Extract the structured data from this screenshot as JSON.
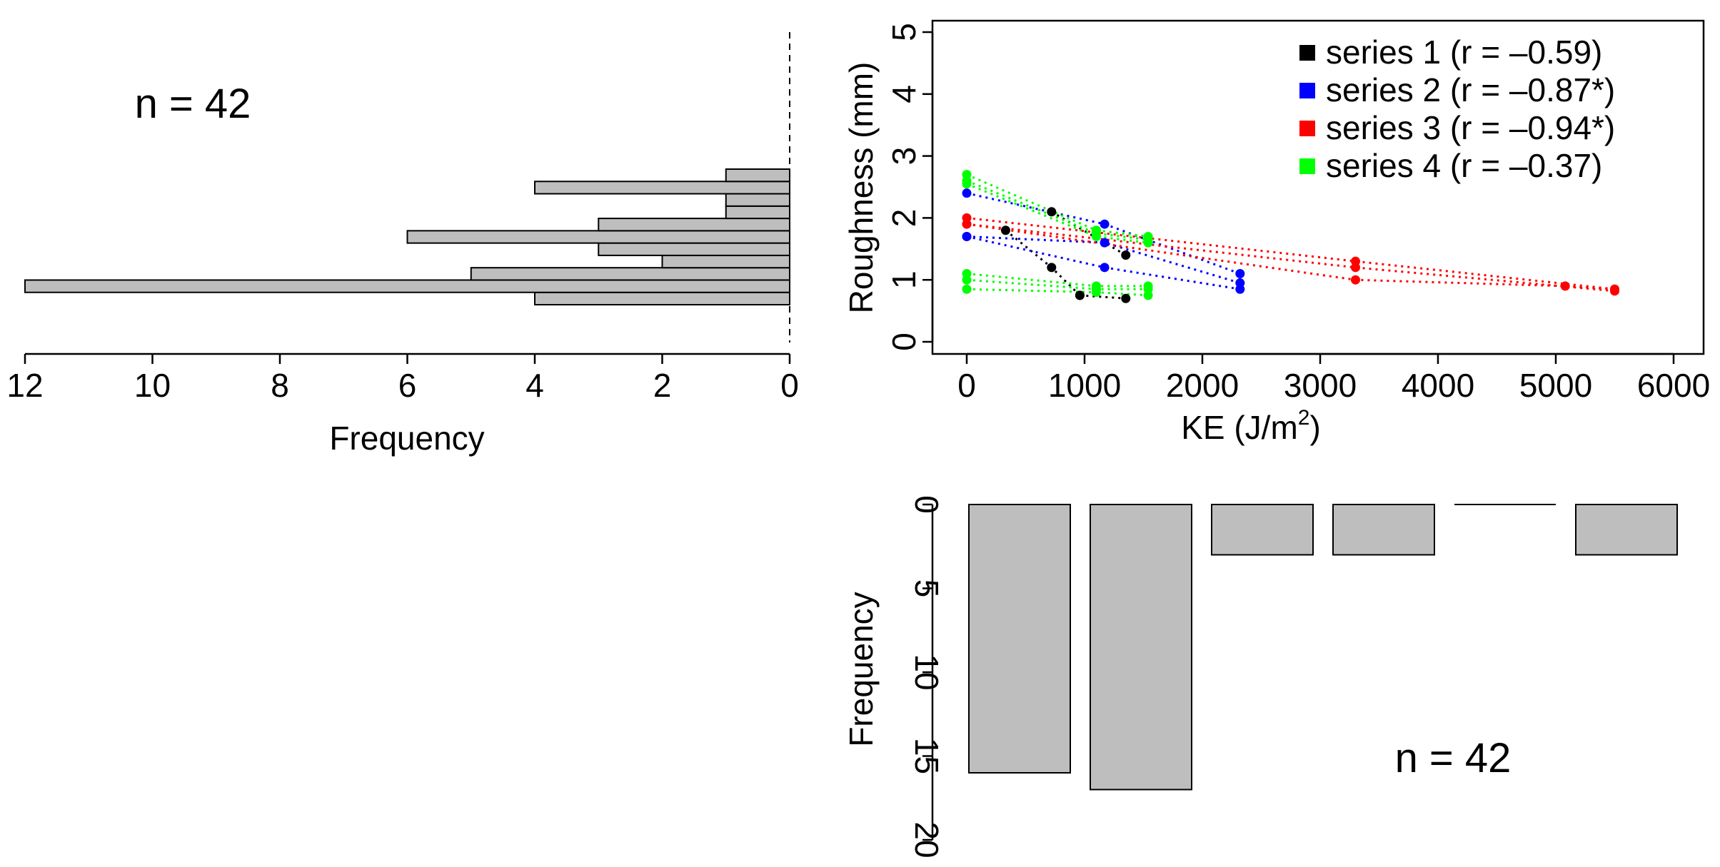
{
  "colors": {
    "bar_fill": "#bebebe",
    "series1": "#000000",
    "series2": "#0000ff",
    "series3": "#ff0000",
    "series4": "#00ff00"
  },
  "chart_data": [
    {
      "type": "bar",
      "name": "left-histogram",
      "orientation": "horizontal",
      "xlabel": "Frequency",
      "annotation": "n = 42",
      "xlim": [
        12,
        0
      ],
      "xticks": [
        12,
        10,
        8,
        6,
        4,
        2,
        0
      ],
      "values": [
        4,
        12,
        5,
        2,
        3,
        6,
        3,
        1,
        1,
        4,
        1
      ]
    },
    {
      "type": "scatter",
      "name": "main-scatter",
      "xlabel": "KE (J/m",
      "xlabel_sup": "2",
      "xlabel_close": ")",
      "ylabel": "Roughness (mm)",
      "xlim": [
        0,
        6000
      ],
      "ylim": [
        0,
        5
      ],
      "xticks": [
        0,
        1000,
        2000,
        3000,
        4000,
        5000,
        6000
      ],
      "yticks": [
        0,
        1,
        2,
        3,
        4,
        5
      ],
      "series": [
        {
          "name": "series 1 (r = –0.59)",
          "color": "#000000",
          "lines": [
            [
              [
                330,
                1.8
              ],
              [
                720,
                1.2
              ],
              [
                960,
                0.75
              ]
            ],
            [
              [
                720,
                2.1
              ],
              [
                1350,
                1.4
              ]
            ],
            [
              [
                960,
                0.75
              ],
              [
                1350,
                0.7
              ]
            ]
          ]
        },
        {
          "name": "series 2 (r = –0.87*)",
          "color": "#0000ff",
          "lines": [
            [
              [
                0,
                2.4
              ],
              [
                1170,
                1.9
              ],
              [
                2320,
                1.1
              ]
            ],
            [
              [
                0,
                1.7
              ],
              [
                1170,
                1.6
              ],
              [
                2320,
                0.95
              ]
            ],
            [
              [
                0,
                1.7
              ],
              [
                1170,
                1.2
              ],
              [
                2320,
                0.85
              ]
            ]
          ]
        },
        {
          "name": "series 3 (r = –0.94*)",
          "color": "#ff0000",
          "lines": [
            [
              [
                0,
                2.0
              ],
              [
                3300,
                1.3
              ],
              [
                5500,
                0.85
              ]
            ],
            [
              [
                0,
                1.9
              ],
              [
                3300,
                1.2
              ],
              [
                5500,
                0.82
              ]
            ],
            [
              [
                0,
                1.9
              ],
              [
                3300,
                1.0
              ],
              [
                5080,
                0.9
              ],
              [
                5500,
                0.85
              ]
            ]
          ]
        },
        {
          "name": "series 4 (r = –0.37)",
          "color": "#00ff00",
          "lines": [
            [
              [
                0,
                2.7
              ],
              [
                1100,
                1.8
              ],
              [
                1540,
                1.7
              ]
            ],
            [
              [
                0,
                2.6
              ],
              [
                1100,
                1.75
              ],
              [
                1540,
                1.65
              ]
            ],
            [
              [
                0,
                2.55
              ],
              [
                1100,
                1.7
              ],
              [
                1540,
                1.6
              ]
            ],
            [
              [
                0,
                1.1
              ],
              [
                1100,
                0.9
              ],
              [
                1540,
                0.9
              ]
            ],
            [
              [
                0,
                1.0
              ],
              [
                1100,
                0.85
              ],
              [
                1540,
                0.85
              ]
            ],
            [
              [
                0,
                0.85
              ],
              [
                1100,
                0.8
              ],
              [
                1540,
                0.75
              ]
            ]
          ]
        }
      ]
    },
    {
      "type": "bar",
      "name": "bottom-histogram",
      "orientation": "vertical-inverted",
      "ylabel": "Frequency",
      "annotation": "n = 42",
      "ylim": [
        0,
        20
      ],
      "yticks": [
        0,
        5,
        10,
        15,
        20
      ],
      "values": [
        16,
        17,
        3,
        3,
        0,
        3
      ]
    }
  ]
}
